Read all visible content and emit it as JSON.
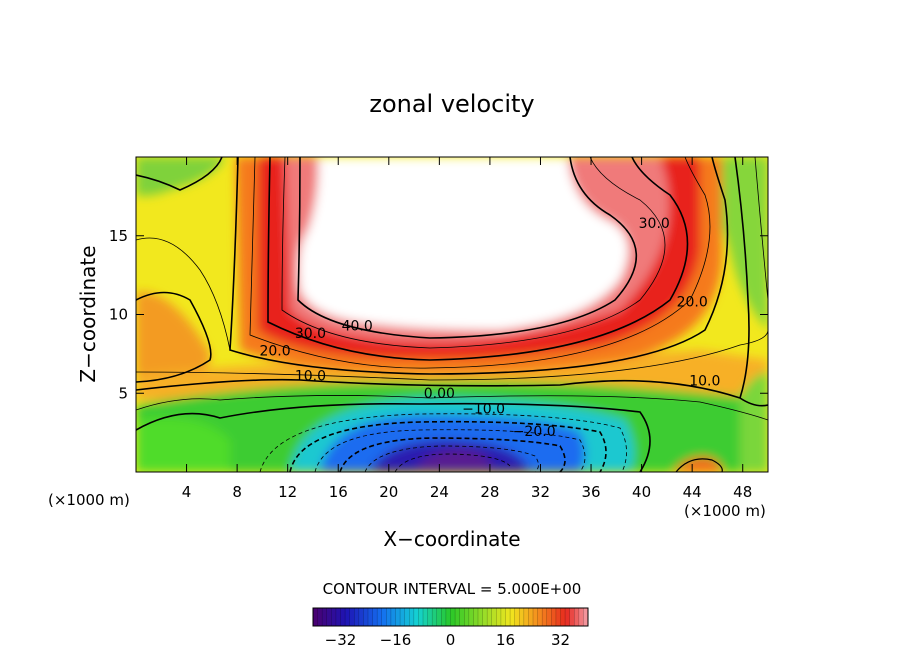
{
  "chart_data": {
    "type": "heatmap",
    "title": "zonal velocity",
    "xlabel": "X−coordinate",
    "ylabel": "Z−coordinate",
    "x_unit_left": "(×1000 m)",
    "x_unit_right": "(×1000 m)",
    "xlim": [
      0,
      50
    ],
    "ylim": [
      0,
      20
    ],
    "xticks": [
      4,
      8,
      12,
      16,
      20,
      24,
      28,
      32,
      36,
      40,
      44,
      48
    ],
    "yticks": [
      5,
      10,
      15
    ],
    "contour_labels": [
      {
        "text": "40.0",
        "x": 17.5,
        "y": 9.0
      },
      {
        "text": "30.0",
        "x": 13.8,
        "y": 8.5
      },
      {
        "text": "20.0",
        "x": 11.0,
        "y": 7.4
      },
      {
        "text": "10.0",
        "x": 13.8,
        "y": 5.8
      },
      {
        "text": "0.00",
        "x": 24.0,
        "y": 4.7
      },
      {
        "text": "−10.0",
        "x": 27.5,
        "y": 3.7
      },
      {
        "text": "−20.0",
        "x": 31.5,
        "y": 2.3
      },
      {
        "text": "30.0",
        "x": 41.0,
        "y": 15.5
      },
      {
        "text": "20.0",
        "x": 44.0,
        "y": 10.5
      },
      {
        "text": "10.0",
        "x": 45.0,
        "y": 5.5
      }
    ],
    "contour_interval_label": "CONTOUR INTERVAL = 5.000E+00",
    "colorbar": {
      "min": -40,
      "max": 40,
      "ticks": [
        "−32",
        "−16",
        "0",
        "16",
        "32"
      ],
      "tick_values": [
        -32,
        -16,
        0,
        16,
        32
      ]
    },
    "field_features": {
      "jet_max_region": "white (above colorbar max) centered near x=24, z=15",
      "jet_core_value": 40,
      "countercurrent_min_value": -36,
      "countercurrent_center": [
        25,
        1.2
      ],
      "colormap": "rainbow (purple-blue-cyan-green-yellow-orange-red-pink)"
    }
  }
}
